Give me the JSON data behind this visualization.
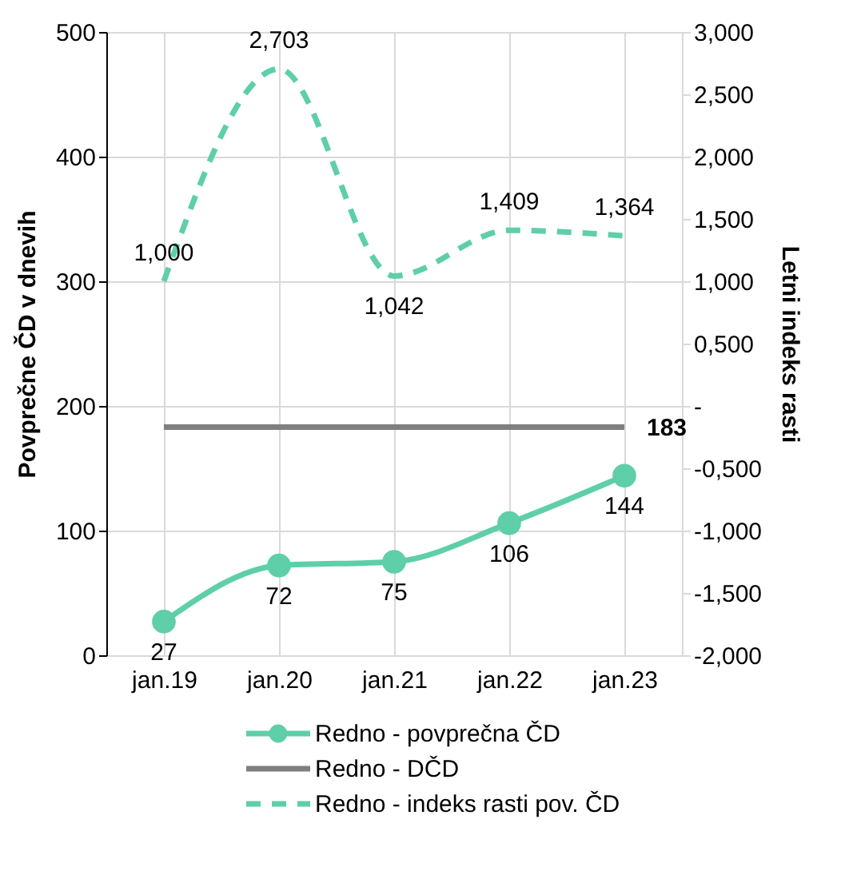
{
  "chart_data": {
    "type": "line",
    "xlabel": null,
    "ylabel": "Povprečne ČD v dnevih",
    "y2label": "Letni indeks rasti",
    "categories": [
      "jan.19",
      "jan.20",
      "jan.21",
      "jan.22",
      "jan.23"
    ],
    "series": [
      {
        "name": "Redno - povprečna ČD",
        "color": "#5ecfa8",
        "values": [
          27,
          72,
          75,
          106,
          144
        ],
        "marker": "circle",
        "line_style": "solid",
        "value_labels": [
          "27",
          "72",
          "75",
          "106",
          "144"
        ]
      },
      {
        "name": "Redno - DČD",
        "color": "#7f7f7f",
        "values": [
          183,
          183,
          183,
          183,
          183
        ],
        "marker": "none",
        "line_style": "solid",
        "value_labels": [
          null,
          null,
          null,
          null,
          "183"
        ]
      },
      {
        "name": "Redno - indeks rasti pov. ČD",
        "color": "#5ecfa8",
        "values": [
          1.0,
          2.703,
          1.042,
          1.409,
          1.364
        ],
        "axis": "y2",
        "marker": "none",
        "line_style": "dashed",
        "value_labels": [
          "1,000",
          "2,703",
          "1,042",
          "1,409",
          "1,364"
        ]
      }
    ],
    "ylim": [
      0,
      500
    ],
    "yticks": [
      0,
      100,
      200,
      300,
      400,
      500
    ],
    "y2lim": [
      -2,
      3
    ],
    "y2ticks": [
      {
        "value": 3,
        "label": "3,000"
      },
      {
        "value": 2.5,
        "label": "2,500"
      },
      {
        "value": 2,
        "label": "2,000"
      },
      {
        "value": 1.5,
        "label": "1,500"
      },
      {
        "value": 1,
        "label": "1,000"
      },
      {
        "value": 0.5,
        "label": "0,500"
      },
      {
        "value": 0,
        "label": "-"
      },
      {
        "value": -0.5,
        "label": "-0,500"
      },
      {
        "value": -1,
        "label": "-1,000"
      },
      {
        "value": -1.5,
        "label": "-1,500"
      },
      {
        "value": -2,
        "label": "-2,000"
      }
    ],
    "grid": true,
    "legend": "bottom"
  }
}
